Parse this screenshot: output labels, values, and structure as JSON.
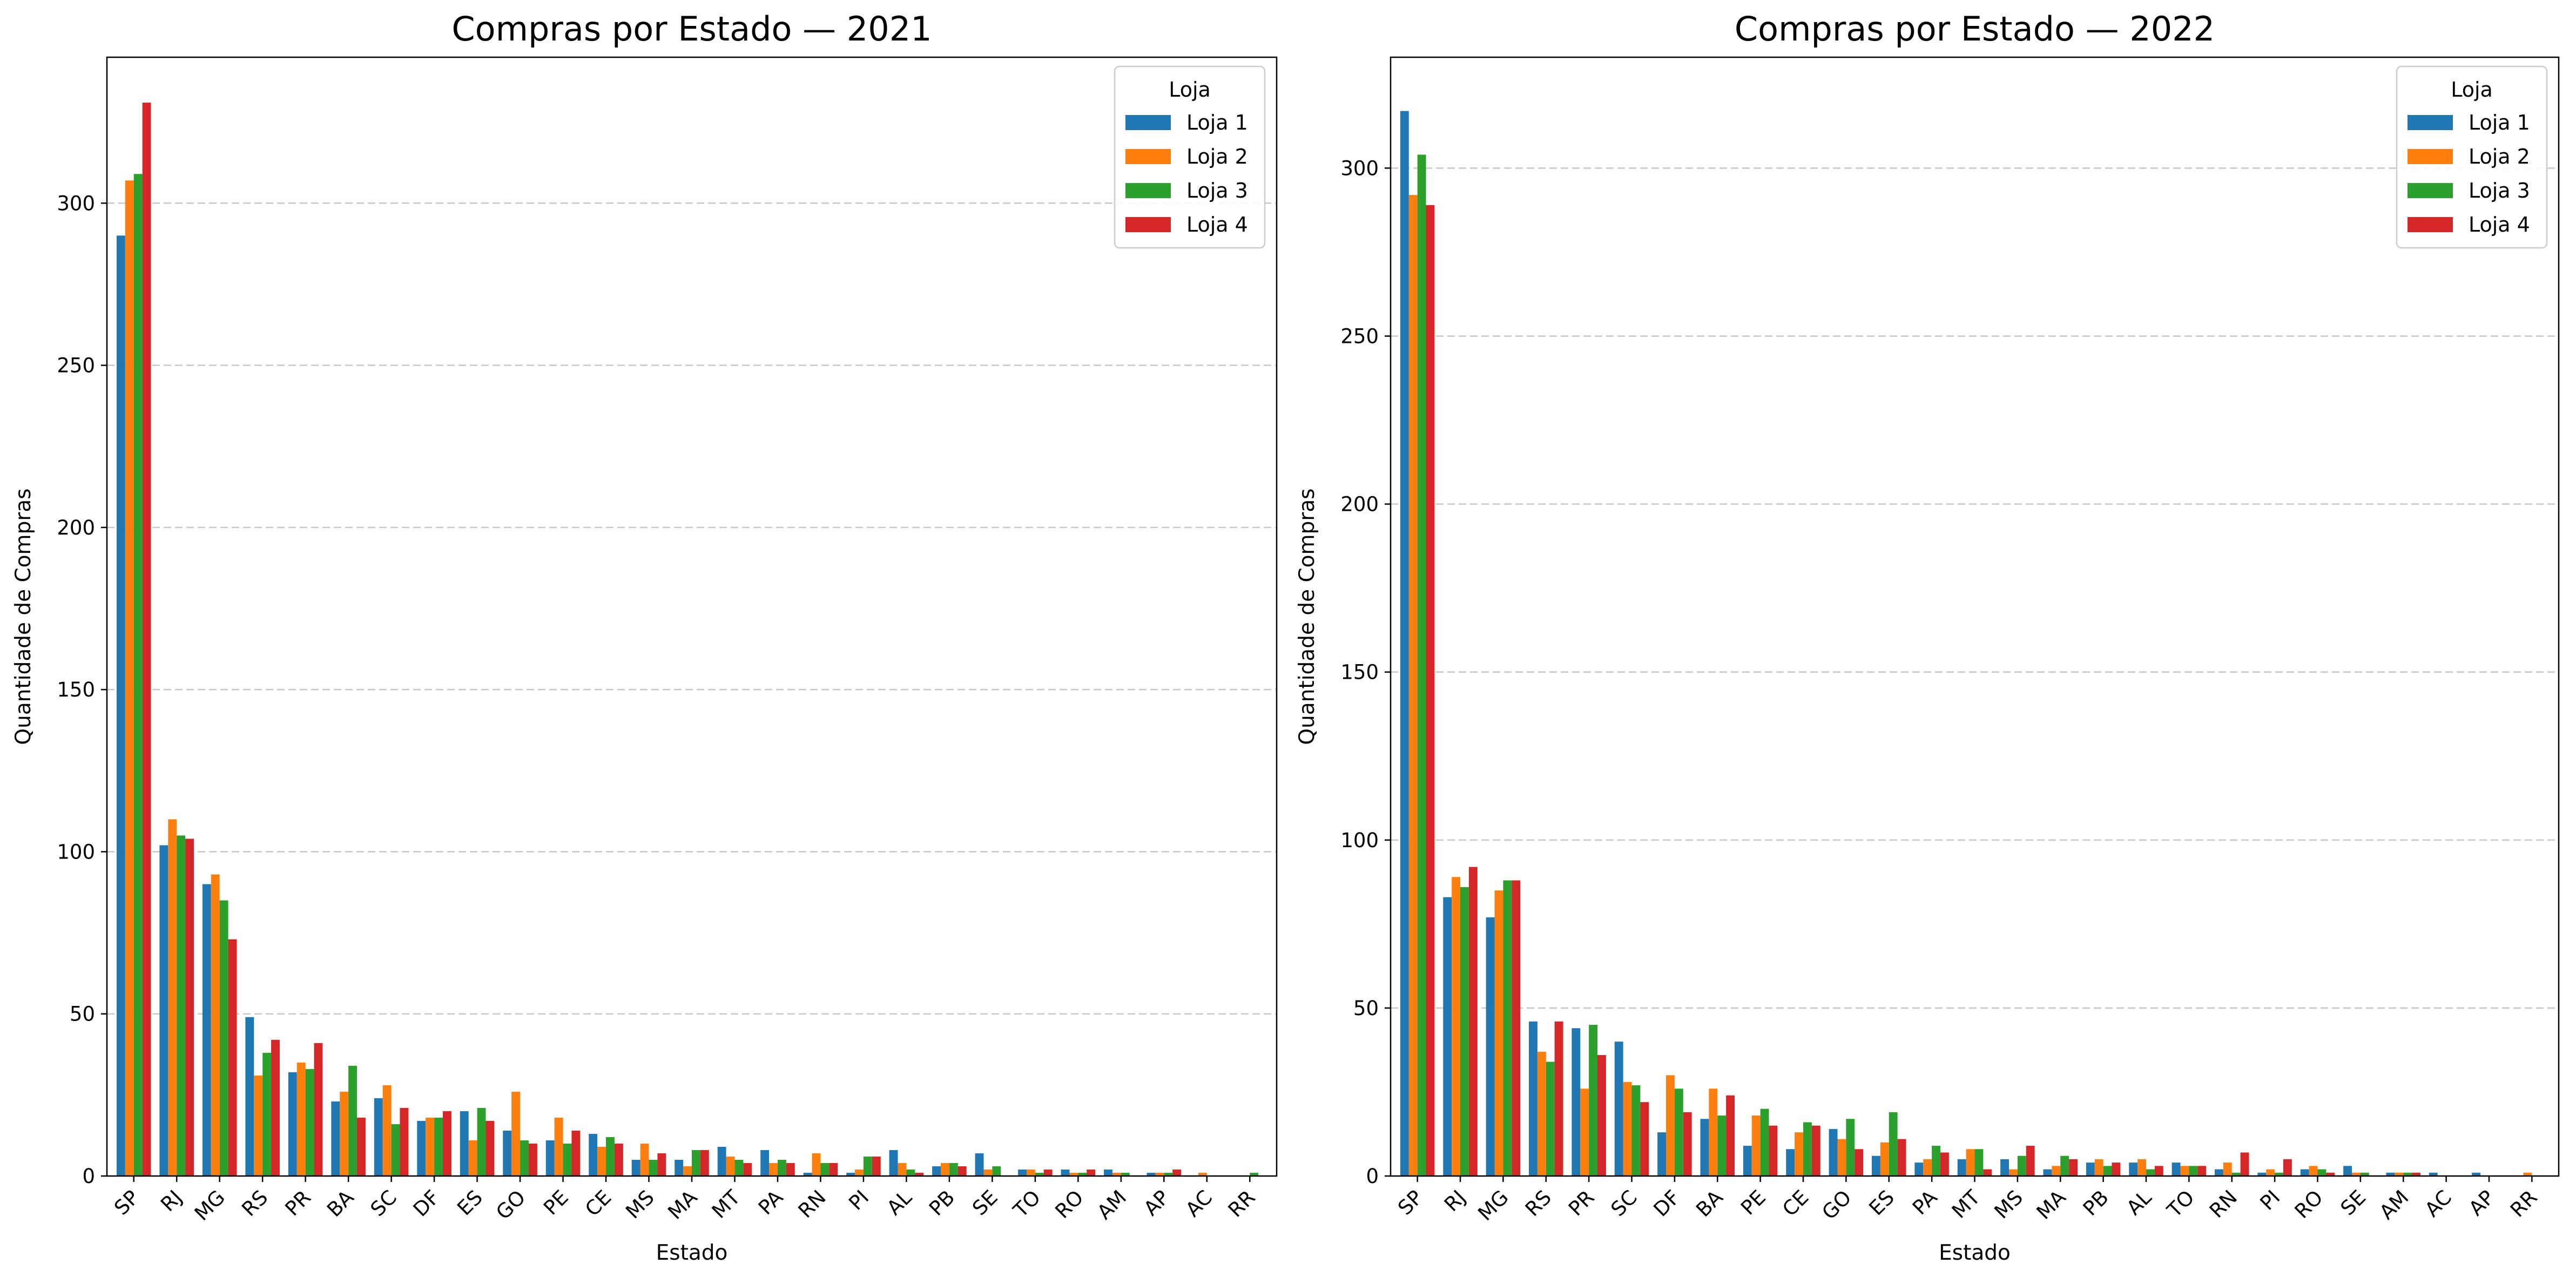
{
  "chart_data": [
    {
      "type": "bar",
      "title": "Compras por Estado — 2021",
      "xlabel": "Estado",
      "ylabel": "Quantidade de Compras",
      "ylim": [
        0,
        345
      ],
      "yticks": [
        0,
        50,
        100,
        150,
        200,
        250,
        300
      ],
      "grid": "y dashed",
      "legend_title": "Loja",
      "legend_position": "upper right",
      "categories": [
        "SP",
        "RJ",
        "MG",
        "RS",
        "PR",
        "BA",
        "SC",
        "DF",
        "ES",
        "GO",
        "PE",
        "CE",
        "MS",
        "MA",
        "MT",
        "PA",
        "RN",
        "PI",
        "AL",
        "PB",
        "SE",
        "TO",
        "RO",
        "AM",
        "AP",
        "AC",
        "RR"
      ],
      "series": [
        {
          "name": "Loja 1",
          "color": "#1f77b4",
          "values": [
            290,
            102,
            90,
            49,
            32,
            23,
            24,
            17,
            20,
            14,
            11,
            13,
            5,
            5,
            9,
            8,
            1,
            1,
            8,
            3,
            7,
            2,
            2,
            2,
            1,
            0,
            0
          ]
        },
        {
          "name": "Loja 2",
          "color": "#ff7f0e",
          "values": [
            307,
            110,
            93,
            31,
            35,
            26,
            28,
            18,
            11,
            26,
            18,
            9,
            10,
            3,
            6,
            4,
            7,
            2,
            4,
            4,
            2,
            2,
            1,
            1,
            1,
            1,
            0
          ]
        },
        {
          "name": "Loja 3",
          "color": "#2ca02c",
          "values": [
            309,
            105,
            85,
            38,
            33,
            34,
            16,
            18,
            21,
            11,
            10,
            12,
            5,
            8,
            5,
            5,
            4,
            6,
            2,
            4,
            3,
            1,
            1,
            1,
            1,
            0,
            1
          ]
        },
        {
          "name": "Loja 4",
          "color": "#d62728",
          "values": [
            331,
            104,
            73,
            42,
            41,
            18,
            21,
            20,
            17,
            10,
            14,
            10,
            7,
            8,
            4,
            4,
            4,
            6,
            1,
            3,
            0,
            2,
            2,
            0,
            2,
            0,
            0
          ]
        }
      ]
    },
    {
      "type": "bar",
      "title": "Compras por Estado — 2022",
      "xlabel": "Estado",
      "ylabel": "Quantidade de Compras",
      "ylim": [
        0,
        333
      ],
      "yticks": [
        0,
        50,
        100,
        150,
        200,
        250,
        300
      ],
      "grid": "y dashed",
      "legend_title": "Loja",
      "legend_position": "upper right",
      "categories": [
        "SP",
        "RJ",
        "MG",
        "RS",
        "PR",
        "SC",
        "DF",
        "BA",
        "PE",
        "CE",
        "GO",
        "ES",
        "PA",
        "MT",
        "MS",
        "MA",
        "PB",
        "AL",
        "TO",
        "RN",
        "PI",
        "RO",
        "SE",
        "AM",
        "AC",
        "AP",
        "RR"
      ],
      "series": [
        {
          "name": "Loja 1",
          "color": "#1f77b4",
          "values": [
            317,
            83,
            77,
            46,
            44,
            40,
            13,
            17,
            9,
            8,
            14,
            6,
            4,
            5,
            5,
            2,
            4,
            4,
            4,
            2,
            1,
            2,
            3,
            1,
            1,
            1,
            0
          ]
        },
        {
          "name": "Loja 2",
          "color": "#ff7f0e",
          "values": [
            292,
            89,
            85,
            37,
            26,
            28,
            30,
            26,
            18,
            13,
            11,
            10,
            5,
            8,
            2,
            3,
            5,
            5,
            3,
            4,
            2,
            3,
            1,
            1,
            0,
            0,
            1
          ]
        },
        {
          "name": "Loja 3",
          "color": "#2ca02c",
          "values": [
            304,
            86,
            88,
            34,
            45,
            27,
            26,
            18,
            20,
            16,
            17,
            19,
            9,
            8,
            6,
            6,
            3,
            2,
            3,
            1,
            1,
            2,
            1,
            1,
            0,
            0,
            0
          ]
        },
        {
          "name": "Loja 4",
          "color": "#d62728",
          "values": [
            289,
            92,
            88,
            46,
            36,
            22,
            19,
            24,
            15,
            15,
            8,
            11,
            7,
            2,
            9,
            5,
            4,
            3,
            3,
            7,
            5,
            1,
            0,
            1,
            0,
            0,
            0
          ]
        }
      ]
    }
  ]
}
